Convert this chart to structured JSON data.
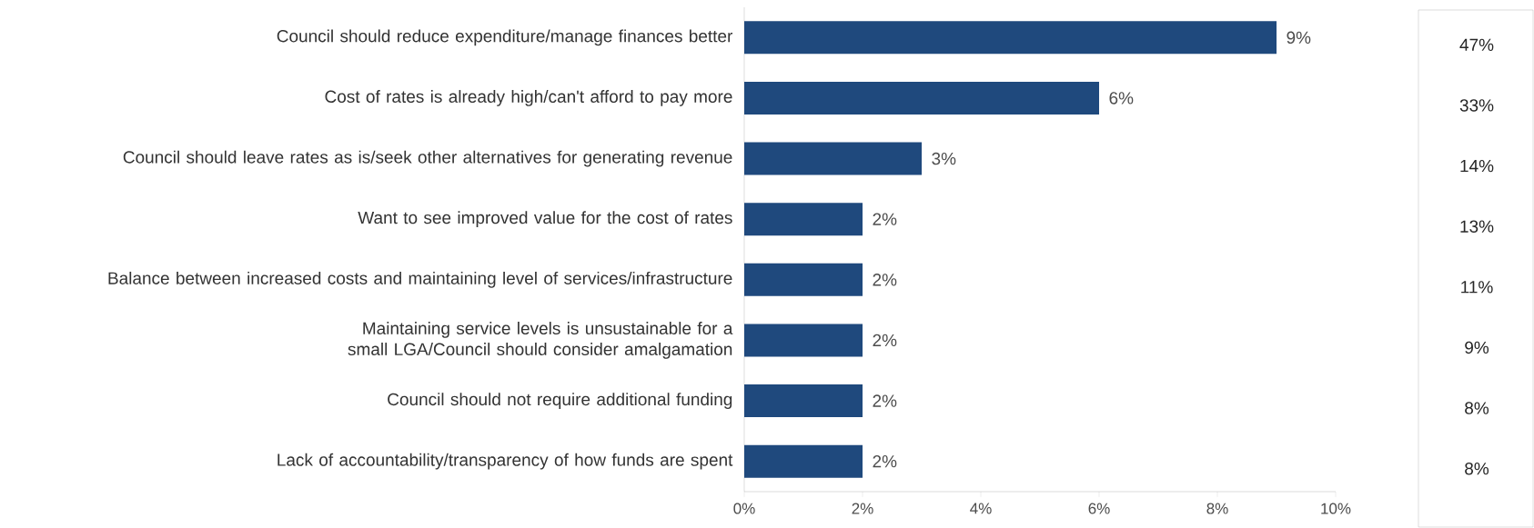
{
  "chart_data": {
    "type": "bar",
    "orientation": "horizontal",
    "categories": [
      "Council should reduce expenditure/manage finances better",
      "Cost of rates is already high/can't afford to pay more",
      "Council should leave rates as is/seek other alternatives for generating revenue",
      "Want to see improved value for the cost of rates",
      "Balance between increased costs and maintaining level of services/infrastructure",
      "Maintaining service levels is unsustainable for a small LGA/Council should consider amalgamation",
      "Council should not require additional funding",
      "Lack of accountability/transparency of how funds are spent"
    ],
    "values": [
      9,
      6,
      3,
      2,
      2,
      2,
      2,
      2
    ],
    "value_labels": [
      "9%",
      "6%",
      "3%",
      "2%",
      "2%",
      "2%",
      "2%",
      "2%"
    ],
    "color": "#1f497d",
    "xlim": [
      0,
      10
    ],
    "xticks": [
      {
        "value": 0,
        "label": "0%"
      },
      {
        "value": 2,
        "label": "2%"
      },
      {
        "value": 4,
        "label": "4%"
      },
      {
        "value": 6,
        "label": "6%"
      },
      {
        "value": 8,
        "label": "8%"
      },
      {
        "value": 10,
        "label": "10%"
      }
    ],
    "annotations": [
      "47%",
      "33%",
      "14%",
      "13%",
      "11%",
      "9%",
      "8%",
      "8%"
    ]
  }
}
